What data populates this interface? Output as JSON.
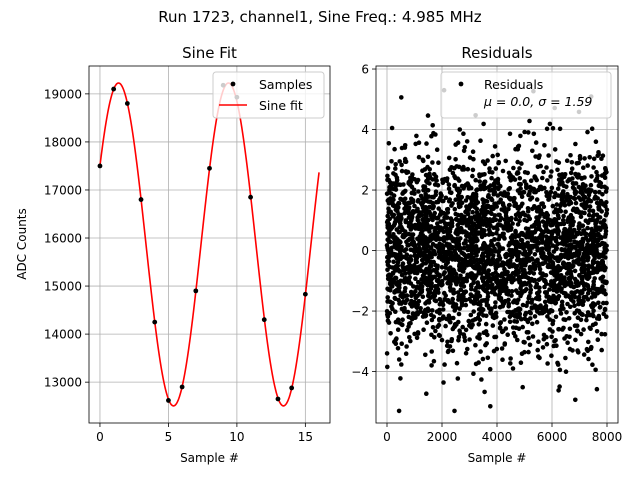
{
  "figure_title": "Run 1723, channel1, Sine Freq.: 4.985 MHz",
  "chart_data": [
    {
      "type": "scatter",
      "title": "Sine Fit",
      "xlabel": "Sample #",
      "ylabel": "ADC Counts",
      "xlim": [
        -0.8,
        16.8
      ],
      "ylim": [
        12150,
        19580
      ],
      "xticks": [
        0,
        5,
        10,
        15
      ],
      "yticks": [
        13000,
        14000,
        15000,
        16000,
        17000,
        18000,
        19000
      ],
      "grid": true,
      "legend_position": "top-right",
      "series": [
        {
          "name": "Samples",
          "marker": "dot",
          "color": "#000000",
          "x": [
            0,
            1,
            2,
            3,
            4,
            5,
            6,
            7,
            8,
            9,
            10,
            11,
            12,
            13,
            14,
            15
          ],
          "y": [
            17500,
            19100,
            18800,
            16800,
            14250,
            12620,
            12900,
            14900,
            17450,
            19180,
            18930,
            16850,
            14300,
            12650,
            12880,
            14830
          ]
        },
        {
          "name": "Sine fit",
          "line": "solid",
          "color": "#ff0000",
          "fit": {
            "offset": 15866,
            "amplitude": 3360,
            "period": 8.03,
            "phase_deg": 29.2
          },
          "x_range": [
            0,
            16
          ]
        }
      ]
    },
    {
      "type": "scatter",
      "title": "Residuals",
      "xlabel": "Sample #",
      "ylabel": "",
      "xlim": [
        -400,
        8400
      ],
      "ylim": [
        -5.7,
        6.1
      ],
      "xticks": [
        0,
        2000,
        4000,
        6000,
        8000
      ],
      "yticks": [
        -4,
        -2,
        0,
        2,
        4,
        6
      ],
      "grid": true,
      "legend_position": "top-right",
      "series": [
        {
          "name": "Residuals",
          "marker": "dot",
          "color": "#000000",
          "x_range": [
            0,
            8000
          ],
          "mean": 0.0,
          "sigma": 1.59,
          "min": -5.3,
          "max": 5.3
        }
      ],
      "legend_lines": [
        "Residuals",
        "μ = 0.0, σ = 1.59"
      ]
    }
  ]
}
